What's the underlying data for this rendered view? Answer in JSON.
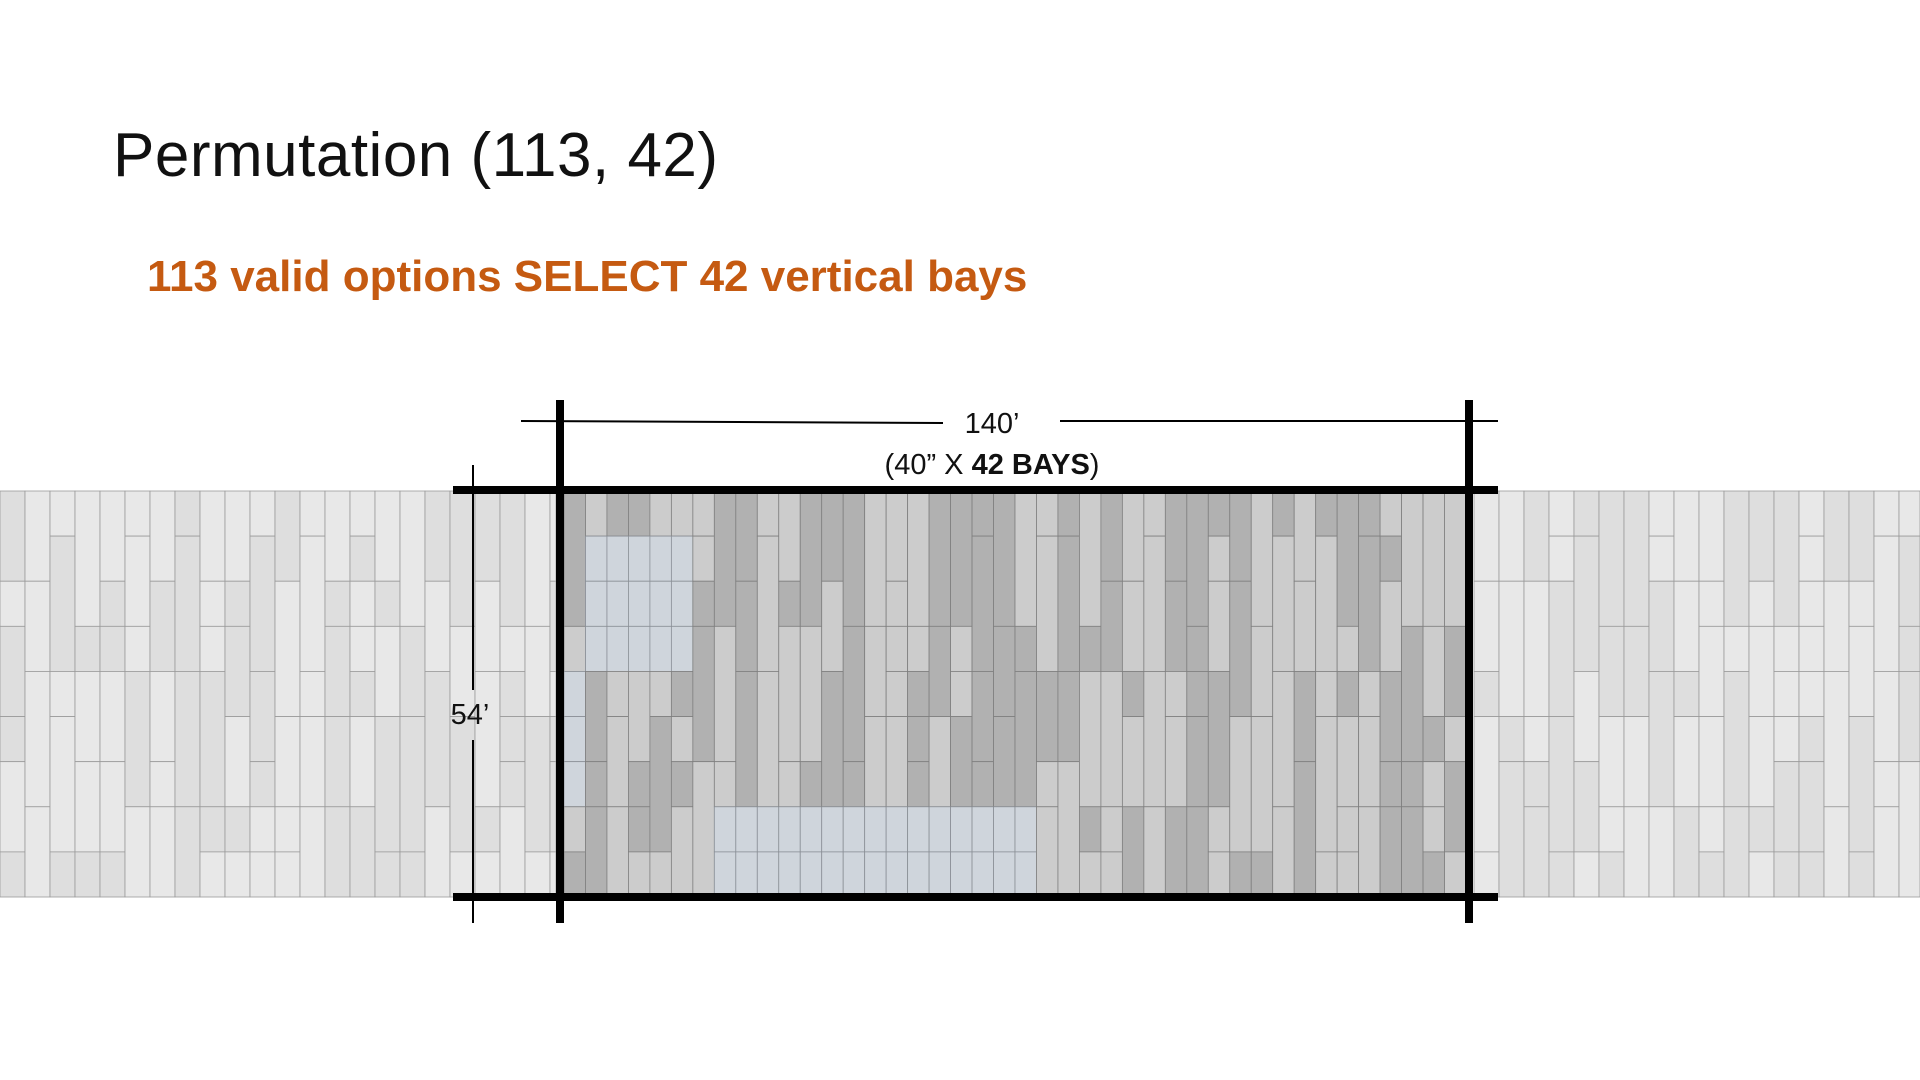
{
  "slide": {
    "title": "Permutation (113, 42)",
    "subtitle": "113 valid options SELECT 42 vertical bays"
  },
  "diagram": {
    "width_label": "140’",
    "bays_label_prefix": "(40” X ",
    "bays_label_bold": "42 BAYS",
    "bays_label_suffix": ")",
    "height_label": "54’",
    "bay_count": 42,
    "colors": {
      "subtitle": "#c55a11",
      "frame": "#000000",
      "faded_light": "#e8e8e8",
      "faded_mid": "#dedede",
      "active_light": "#cccccc",
      "active_dark": "#b1b1b1",
      "highlight_blue": "#cfd5dc"
    }
  }
}
